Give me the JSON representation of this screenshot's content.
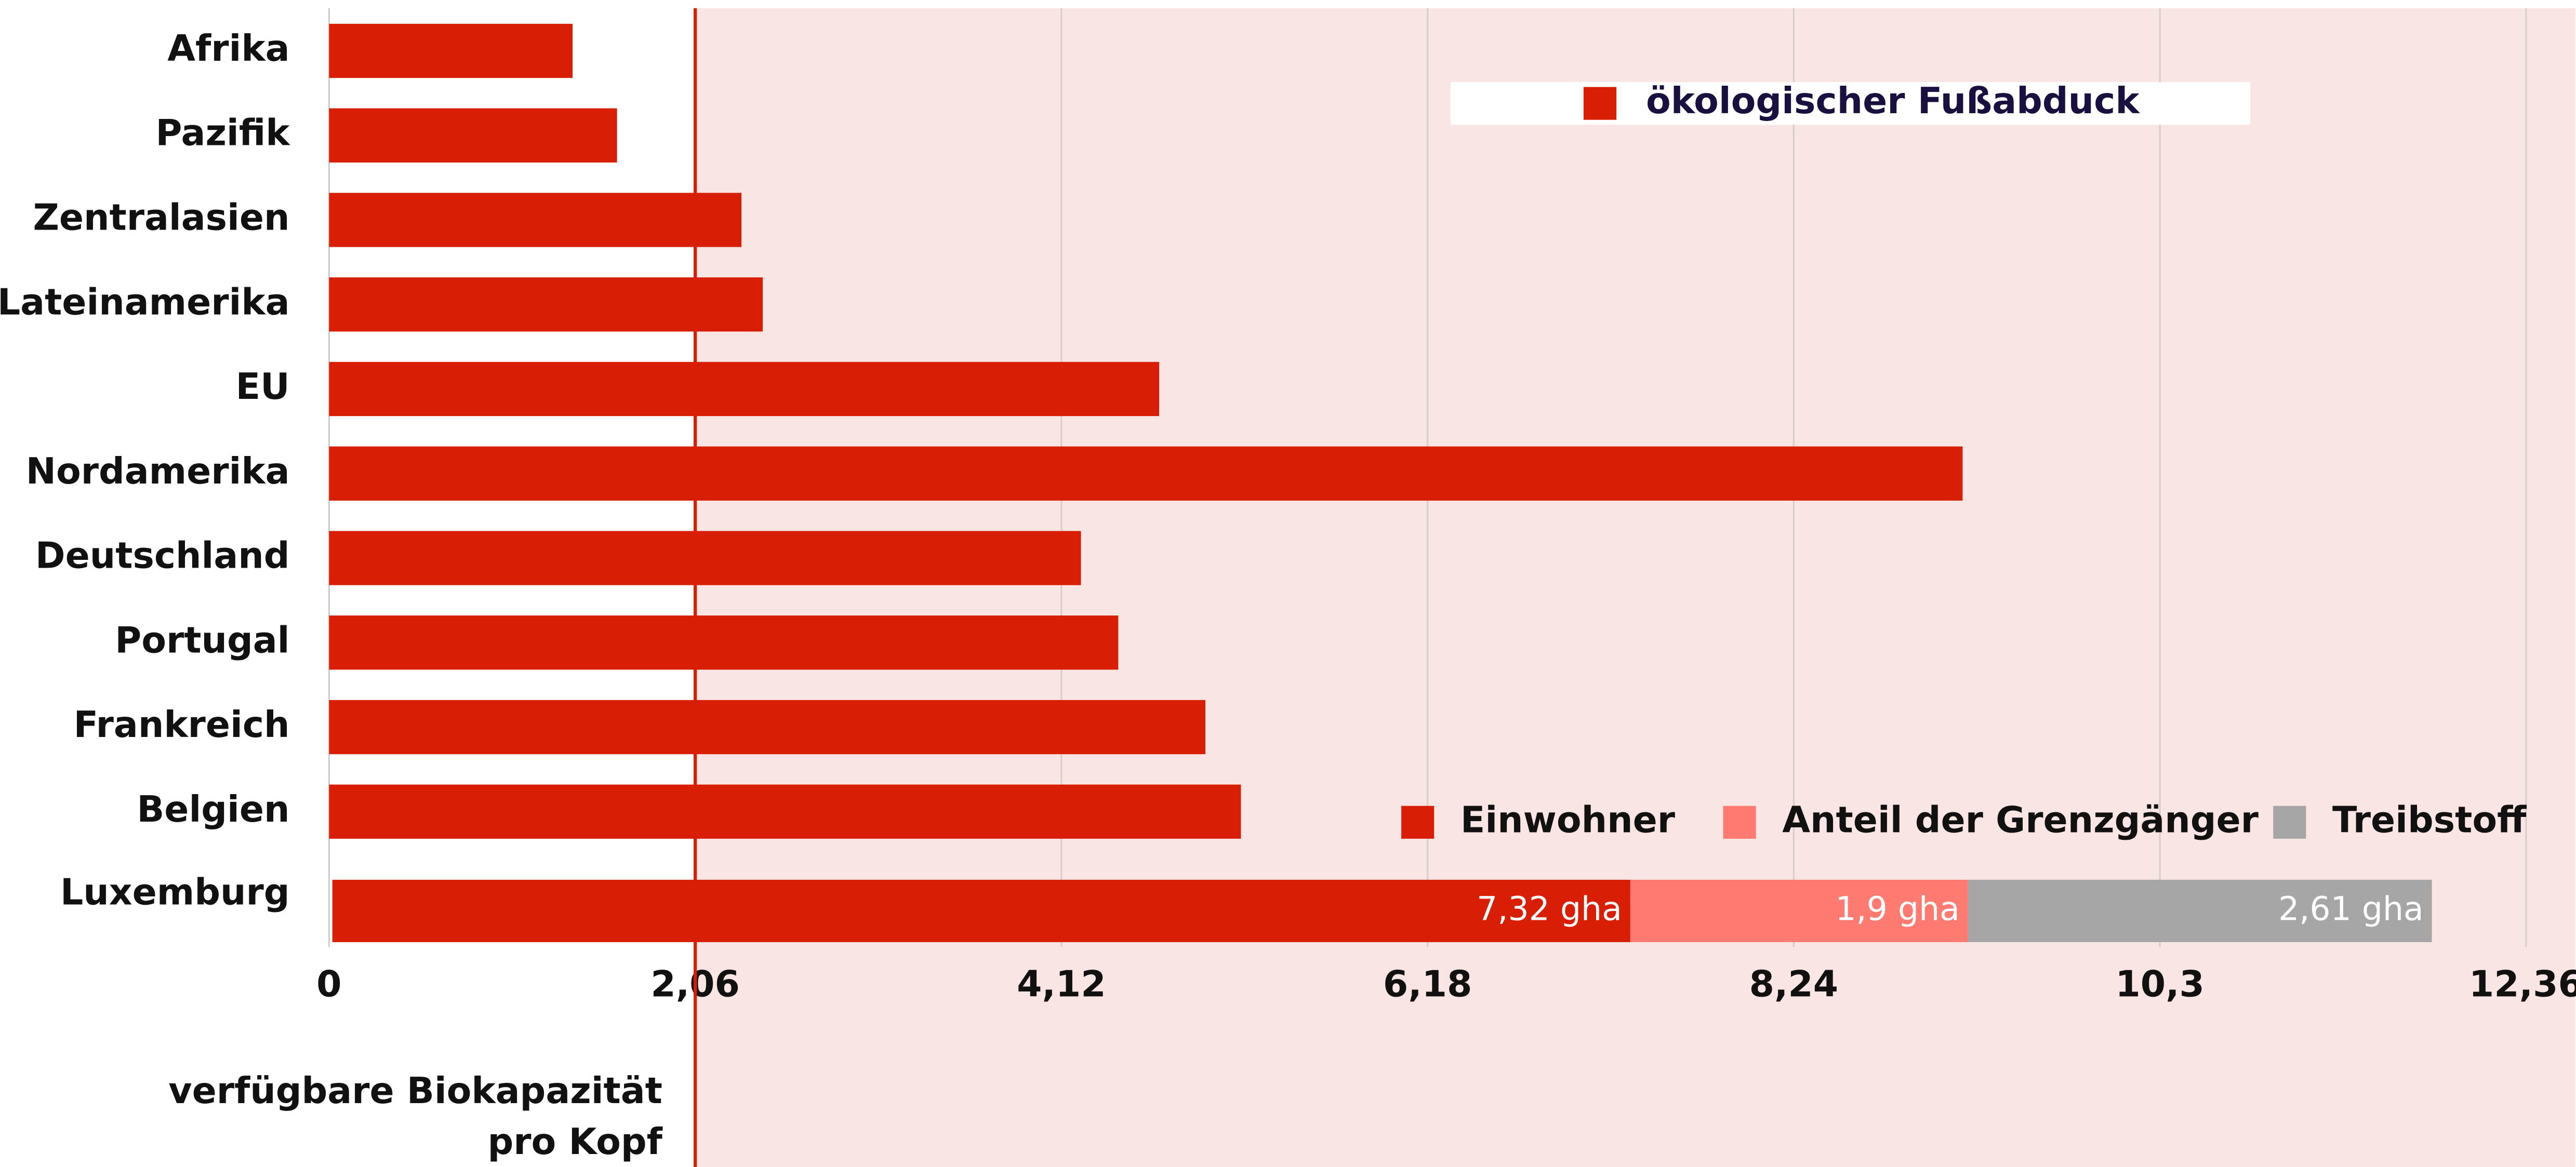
{
  "chart_data": {
    "type": "bar",
    "orientation": "horizontal",
    "stacked": true,
    "categories": [
      "Afrika",
      "Pazifik",
      "Zentralasien",
      "Lateinamerika",
      "EU",
      "Nordamerika",
      "Deutschland",
      "Portugal",
      "Frankreich",
      "Belgien",
      "Luxemburg"
    ],
    "series": [
      {
        "name": "ökologischer Fußabduck",
        "color": "#d81e05",
        "values": [
          1.37,
          1.62,
          2.32,
          2.44,
          4.67,
          9.19,
          4.23,
          4.44,
          4.93,
          5.13,
          null
        ]
      },
      {
        "name": "Einwohner",
        "color": "#d81e05",
        "values": [
          null,
          null,
          null,
          null,
          null,
          null,
          null,
          null,
          null,
          null,
          7.32
        ],
        "value_labels": [
          null,
          null,
          null,
          null,
          null,
          null,
          null,
          null,
          null,
          null,
          "7,32 gha"
        ]
      },
      {
        "name": "Anteil der Grenzgänger",
        "color": "#ff7b72",
        "values": [
          null,
          null,
          null,
          null,
          null,
          null,
          null,
          null,
          null,
          null,
          1.9
        ],
        "value_labels": [
          null,
          null,
          null,
          null,
          null,
          null,
          null,
          null,
          null,
          null,
          "1,9 gha"
        ]
      },
      {
        "name": "Treibstoff",
        "color": "#a6a6a6",
        "values": [
          null,
          null,
          null,
          null,
          null,
          null,
          null,
          null,
          null,
          null,
          2.61
        ],
        "value_labels": [
          null,
          null,
          null,
          null,
          null,
          null,
          null,
          null,
          null,
          null,
          "2,61 gha"
        ]
      }
    ],
    "xlim": [
      0,
      12.36
    ],
    "xticks": [
      0,
      {
        "value": 2.06,
        "label": "2,06"
      },
      {
        "value": 4.12,
        "label": "4,12"
      },
      {
        "value": 6.18,
        "label": "6,18"
      },
      {
        "value": 8.24,
        "label": "8,24"
      },
      {
        "value": 10.3,
        "label": "10,3"
      },
      {
        "value": 12.36,
        "label": "12,36"
      }
    ],
    "grid": true,
    "reference_value": 2.06,
    "reference_color": "#d81e05",
    "annotation": [
      "verfügbare Biokapazität",
      "pro Kopf"
    ]
  }
}
